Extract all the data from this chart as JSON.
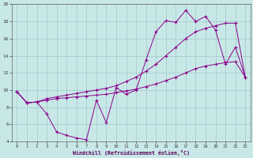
{
  "xlabel": "Windchill (Refroidissement éolien,°C)",
  "bg_color": "#c8e8e8",
  "line_color": "#8b008b",
  "grid_color": "#a0c8c8",
  "xlim": [
    -0.5,
    23.5
  ],
  "ylim": [
    4,
    20
  ],
  "xticks": [
    0,
    1,
    2,
    3,
    4,
    5,
    6,
    7,
    8,
    9,
    10,
    11,
    12,
    13,
    14,
    15,
    16,
    17,
    18,
    19,
    20,
    21,
    22,
    23
  ],
  "yticks": [
    4,
    6,
    8,
    10,
    12,
    14,
    16,
    18,
    20
  ],
  "line1_x": [
    0,
    1,
    2,
    3,
    4,
    5,
    6,
    7,
    8,
    9,
    10,
    11,
    12,
    13,
    14,
    15,
    16,
    17,
    18,
    19,
    20,
    21,
    22,
    23
  ],
  "line1_y": [
    9.8,
    8.5,
    8.6,
    7.2,
    5.1,
    4.7,
    4.4,
    4.2,
    8.8,
    6.2,
    10.3,
    9.5,
    10.0,
    13.5,
    16.8,
    18.1,
    17.9,
    19.3,
    18.0,
    18.6,
    17.0,
    13.0,
    15.0,
    11.5
  ],
  "line2_x": [
    0,
    1,
    2,
    3,
    4,
    5,
    6,
    7,
    8,
    9,
    10,
    11,
    12,
    13,
    14,
    15,
    16,
    17,
    18,
    19,
    20,
    21,
    22,
    23
  ],
  "line2_y": [
    9.8,
    8.5,
    8.6,
    9.0,
    9.2,
    9.4,
    9.6,
    9.8,
    10.0,
    10.2,
    10.5,
    11.0,
    11.5,
    12.2,
    13.0,
    14.0,
    15.0,
    16.0,
    16.8,
    17.2,
    17.5,
    17.8,
    17.8,
    11.5
  ],
  "line3_x": [
    0,
    1,
    2,
    3,
    4,
    5,
    6,
    7,
    8,
    9,
    10,
    11,
    12,
    13,
    14,
    15,
    16,
    17,
    18,
    19,
    20,
    21,
    22,
    23
  ],
  "line3_y": [
    9.8,
    8.5,
    8.6,
    8.8,
    9.0,
    9.1,
    9.2,
    9.3,
    9.4,
    9.5,
    9.7,
    9.9,
    10.1,
    10.4,
    10.7,
    11.1,
    11.5,
    12.0,
    12.5,
    12.8,
    13.0,
    13.2,
    13.3,
    11.5
  ]
}
